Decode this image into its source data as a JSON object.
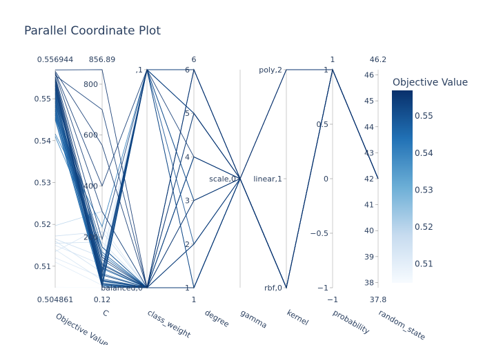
{
  "chart_data": {
    "type": "parallel_coordinates",
    "title": "Parallel Coordinate Plot",
    "colorbar": {
      "title": "Objective Value",
      "range": [
        0.504861,
        0.556944
      ],
      "ticks": [
        "0.51",
        "0.52",
        "0.53",
        "0.54",
        "0.55"
      ],
      "colors": [
        "#f7fbff",
        "#c6dbef",
        "#6baed6",
        "#2171b5",
        "#08306b"
      ]
    },
    "dimensions": [
      {
        "name": "Objective Value",
        "range": [
          0.504861,
          0.556944
        ],
        "min_label": "0.504861",
        "max_label": "0.556944",
        "ticks": [
          {
            "v": 0.51,
            "t": "0.51"
          },
          {
            "v": 0.52,
            "t": "0.52"
          },
          {
            "v": 0.53,
            "t": "0.53"
          },
          {
            "v": 0.54,
            "t": "0.54"
          },
          {
            "v": 0.55,
            "t": "0.55"
          }
        ]
      },
      {
        "name": "C",
        "range": [
          0.12,
          856.89
        ],
        "min_label": "0.12",
        "max_label": "856.89",
        "ticks": [
          {
            "v": 200,
            "t": "200"
          },
          {
            "v": 400,
            "t": "400"
          },
          {
            "v": 600,
            "t": "600"
          },
          {
            "v": 800,
            "t": "800"
          }
        ]
      },
      {
        "name": "class_weight",
        "range": [
          0,
          1
        ],
        "min_label": "",
        "max_label": "",
        "ticks": [
          {
            "v": 0,
            "t": "balanced,0"
          },
          {
            "v": 1,
            "t": ",1"
          }
        ]
      },
      {
        "name": "degree",
        "range": [
          1,
          6
        ],
        "min_label": "1",
        "max_label": "6",
        "ticks": [
          {
            "v": 1,
            "t": "1"
          },
          {
            "v": 2,
            "t": "2"
          },
          {
            "v": 3,
            "t": "3"
          },
          {
            "v": 4,
            "t": "4"
          },
          {
            "v": 5,
            "t": "5"
          },
          {
            "v": 6,
            "t": "6"
          }
        ]
      },
      {
        "name": "gamma",
        "range": [
          -1,
          1
        ],
        "min_label": "",
        "max_label": "",
        "ticks": [
          {
            "v": 0,
            "t": "scale,0"
          }
        ]
      },
      {
        "name": "kernel",
        "range": [
          0,
          2
        ],
        "min_label": "",
        "max_label": "",
        "ticks": [
          {
            "v": 0,
            "t": "rbf,0"
          },
          {
            "v": 1,
            "t": "linear,1"
          },
          {
            "v": 2,
            "t": "poly,2"
          }
        ]
      },
      {
        "name": "probability",
        "range": [
          -1,
          1
        ],
        "min_label": "−1",
        "max_label": "1",
        "ticks": [
          {
            "v": -1,
            "t": "−1"
          },
          {
            "v": -0.5,
            "t": "−0.5"
          },
          {
            "v": 0,
            "t": "0"
          },
          {
            "v": 0.5,
            "t": "0.5"
          },
          {
            "v": 1,
            "t": "1"
          }
        ]
      },
      {
        "name": "random_state",
        "range": [
          37.8,
          46.2
        ],
        "min_label": "37.8",
        "max_label": "46.2",
        "ticks": [
          {
            "v": 38,
            "t": "38"
          },
          {
            "v": 39,
            "t": "39"
          },
          {
            "v": 40,
            "t": "40"
          },
          {
            "v": 41,
            "t": "41"
          },
          {
            "v": 42,
            "t": "42"
          },
          {
            "v": 43,
            "t": "43"
          },
          {
            "v": 44,
            "t": "44"
          },
          {
            "v": 45,
            "t": "45"
          },
          {
            "v": 46,
            "t": "46"
          }
        ]
      }
    ],
    "trials": [
      [
        0.5569,
        856.89,
        0,
        6,
        0,
        2,
        1,
        42
      ],
      [
        0.5566,
        560,
        0,
        5,
        0,
        0,
        1,
        42
      ],
      [
        0.5563,
        400,
        1,
        4,
        0,
        2,
        1,
        42
      ],
      [
        0.556,
        300,
        0,
        3,
        0,
        0,
        1,
        42
      ],
      [
        0.5556,
        700,
        0,
        1,
        0,
        0,
        1,
        42
      ],
      [
        0.5553,
        190,
        1,
        6,
        0,
        2,
        1,
        42
      ],
      [
        0.555,
        120,
        0,
        2,
        0,
        0,
        1,
        42
      ],
      [
        0.5546,
        90,
        0,
        1,
        0,
        0,
        1,
        42
      ],
      [
        0.5543,
        60,
        1,
        5,
        0,
        0,
        1,
        42
      ],
      [
        0.554,
        30,
        0,
        4,
        0,
        2,
        1,
        42
      ],
      [
        0.5536,
        15,
        0,
        3,
        0,
        0,
        1,
        42
      ],
      [
        0.5533,
        5,
        1,
        1,
        0,
        0,
        1,
        42
      ],
      [
        0.553,
        2,
        0,
        6,
        0,
        0,
        1,
        42
      ],
      [
        0.5526,
        50,
        0,
        2,
        0,
        0,
        1,
        42
      ],
      [
        0.5523,
        40,
        1,
        5,
        0,
        0,
        1,
        42
      ],
      [
        0.552,
        110,
        0,
        1,
        0,
        0,
        1,
        42
      ],
      [
        0.5516,
        80,
        0,
        4,
        0,
        0,
        1,
        42
      ],
      [
        0.5513,
        20,
        1,
        3,
        0,
        0,
        1,
        42
      ],
      [
        0.551,
        10,
        0,
        1,
        0,
        0,
        1,
        42
      ],
      [
        0.5506,
        160,
        0,
        6,
        0,
        0,
        1,
        42
      ],
      [
        0.5503,
        70,
        1,
        2,
        0,
        0,
        1,
        42
      ],
      [
        0.55,
        25,
        0,
        5,
        0,
        0,
        1,
        42
      ],
      [
        0.5496,
        35,
        0,
        1,
        0,
        0,
        1,
        42
      ],
      [
        0.5493,
        8,
        1,
        6,
        0,
        0,
        1,
        42
      ],
      [
        0.549,
        55,
        0,
        4,
        0,
        0,
        1,
        42
      ],
      [
        0.5486,
        140,
        0,
        1,
        0,
        0,
        1,
        42
      ],
      [
        0.5483,
        45,
        1,
        3,
        0,
        0,
        1,
        42
      ],
      [
        0.548,
        12,
        0,
        2,
        0,
        0,
        1,
        42
      ],
      [
        0.5476,
        95,
        0,
        1,
        0,
        0,
        1,
        42
      ],
      [
        0.5473,
        65,
        1,
        5,
        0,
        0,
        1,
        42
      ],
      [
        0.547,
        18,
        0,
        6,
        0,
        0,
        1,
        42
      ],
      [
        0.5466,
        28,
        0,
        1,
        0,
        0,
        1,
        42
      ],
      [
        0.5463,
        3,
        1,
        1,
        0,
        0,
        1,
        42
      ],
      [
        0.546,
        75,
        0,
        4,
        0,
        0,
        1,
        42
      ],
      [
        0.5456,
        130,
        0,
        1,
        0,
        0,
        1,
        42
      ],
      [
        0.5453,
        22,
        1,
        6,
        0,
        0,
        1,
        42
      ],
      [
        0.545,
        6,
        0,
        1,
        0,
        0,
        1,
        42
      ],
      [
        0.5416,
        240,
        1,
        5,
        0,
        0,
        1,
        42
      ],
      [
        0.541,
        160,
        0,
        1,
        0,
        0,
        1,
        42
      ],
      [
        0.5197,
        300,
        0,
        1,
        0,
        0,
        1,
        42
      ],
      [
        0.5172,
        220,
        0,
        1,
        0,
        0,
        1,
        42
      ],
      [
        0.5165,
        120,
        1,
        2,
        0,
        0,
        1,
        42
      ],
      [
        0.516,
        60,
        0,
        1,
        0,
        0,
        1,
        42
      ],
      [
        0.5155,
        180,
        0,
        6,
        0,
        0,
        1,
        42
      ],
      [
        0.515,
        90,
        1,
        1,
        0,
        0,
        1,
        42
      ],
      [
        0.514,
        30,
        0,
        1,
        0,
        0,
        1,
        42
      ],
      [
        0.5135,
        240,
        0,
        4,
        0,
        0,
        1,
        42
      ],
      [
        0.512,
        40,
        1,
        1,
        0,
        0,
        1,
        42
      ],
      [
        0.511,
        10,
        0,
        1,
        0,
        0,
        1,
        42
      ],
      [
        0.505,
        0.12,
        0,
        1,
        0,
        0,
        1,
        42
      ]
    ]
  }
}
